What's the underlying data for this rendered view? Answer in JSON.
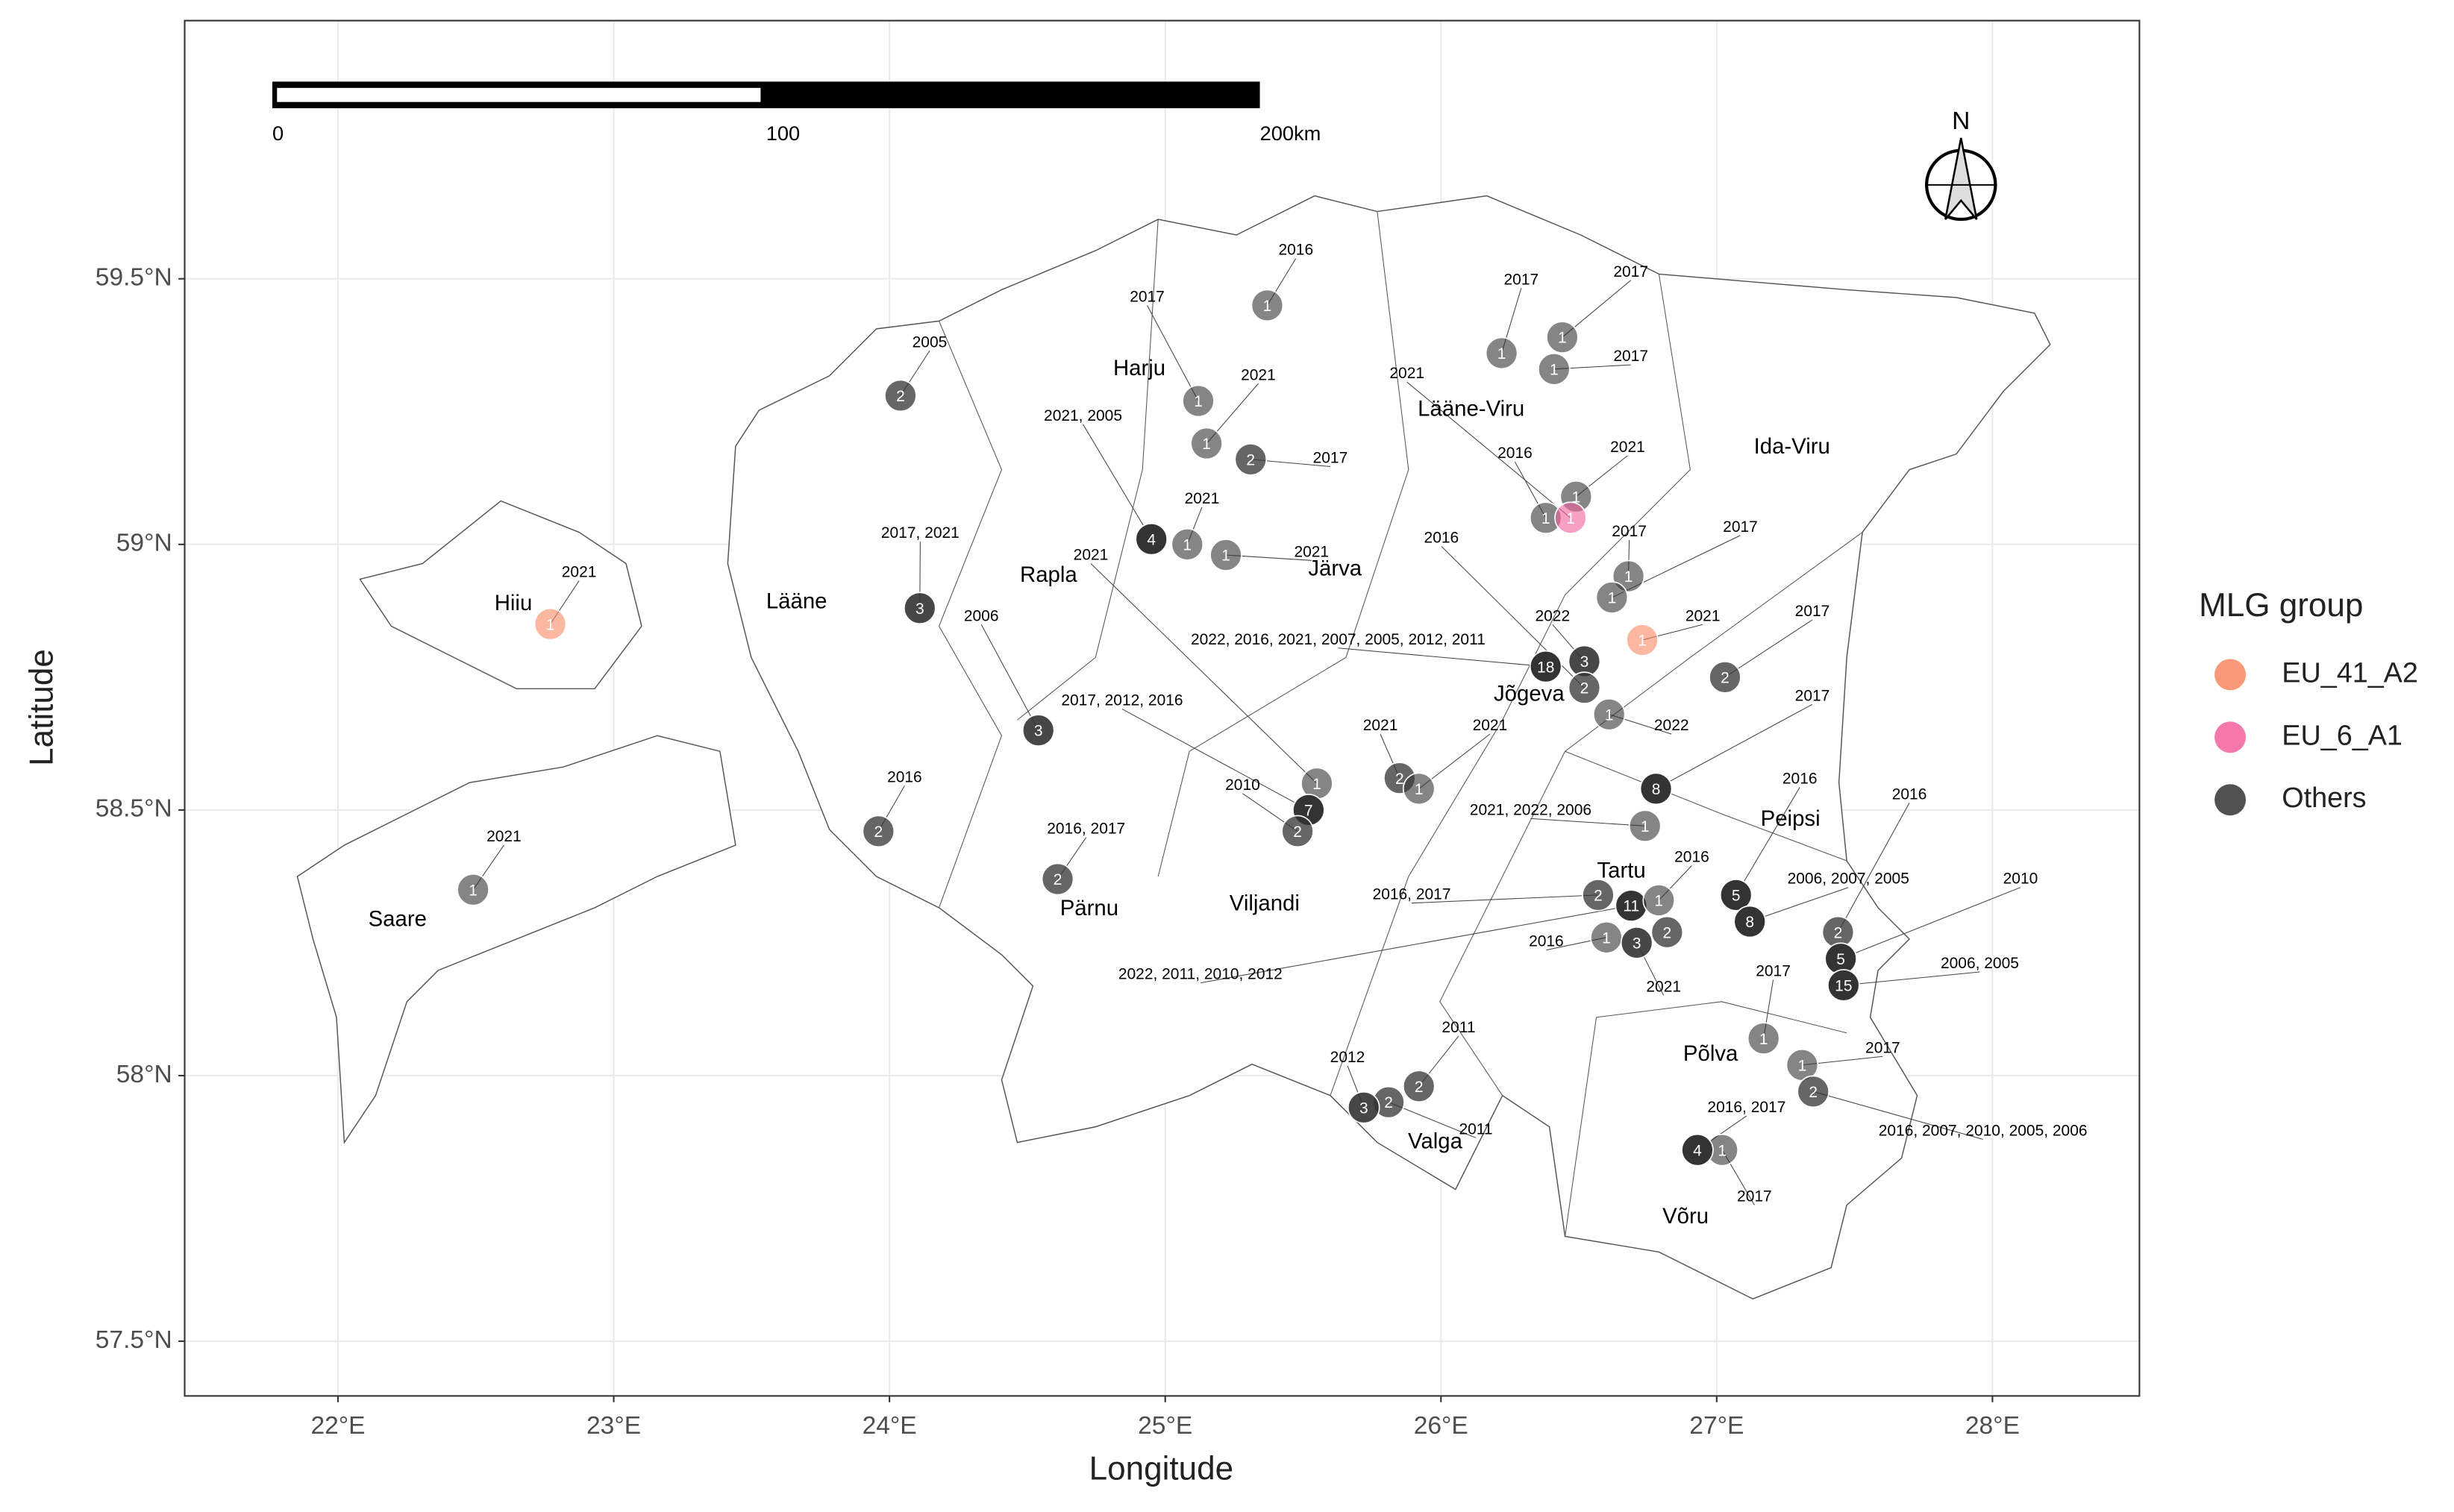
{
  "chart_data": {
    "type": "map",
    "xlabel": "Longitude",
    "ylabel": "Latitude",
    "xlim": [
      21.444,
      28.533
    ],
    "ylim": [
      57.397,
      59.986
    ],
    "xticks": [
      {
        "value": 22,
        "label": "22°E"
      },
      {
        "value": 23,
        "label": "23°E"
      },
      {
        "value": 24,
        "label": "24°E"
      },
      {
        "value": 25,
        "label": "25°E"
      },
      {
        "value": 26,
        "label": "26°E"
      },
      {
        "value": 27,
        "label": "27°E"
      },
      {
        "value": 28,
        "label": "28°E"
      }
    ],
    "yticks": [
      {
        "value": 57.5,
        "label": "57.5°N"
      },
      {
        "value": 58,
        "label": "58°N"
      },
      {
        "value": 58.5,
        "label": "58.5°N"
      },
      {
        "value": 59,
        "label": "59°N"
      },
      {
        "value": 59.5,
        "label": "59.5°N"
      }
    ],
    "grid": true,
    "legend_title": "MLG group",
    "groups": [
      {
        "name": "EU_41_A2",
        "color": "#f8875f"
      },
      {
        "name": "EU_6_A1",
        "color": "#f2609e"
      },
      {
        "name": "Others",
        "color": "#333333"
      }
    ],
    "scale_bar": {
      "ticks": [
        0,
        100,
        {
          "value": 200,
          "label": "200km"
        }
      ]
    },
    "compass": "N",
    "regions": [
      "Harju",
      "Lääne-Viru",
      "Ida-Viru",
      "Hiiu",
      "Lääne",
      "Rapla",
      "Järva",
      "Jõgeva",
      "Peipsi",
      "Tartu",
      "Saare",
      "Pärnu",
      "Viljandi",
      "Põlva",
      "Valga",
      "Võru"
    ],
    "points": [
      {
        "lon": 22.49,
        "lat": 58.35,
        "count": 1,
        "years": "2021",
        "group": "Others"
      },
      {
        "lon": 22.77,
        "lat": 58.85,
        "count": 1,
        "years": "2021",
        "group": "EU_41_A2"
      },
      {
        "lon": 24.04,
        "lat": 59.28,
        "count": 2,
        "years": "2005",
        "group": "Others"
      },
      {
        "lon": 24.11,
        "lat": 58.88,
        "count": 3,
        "years": "2017, 2021",
        "group": "Others"
      },
      {
        "lon": 23.96,
        "lat": 58.46,
        "count": 2,
        "years": "2016",
        "group": "Others"
      },
      {
        "lon": 24.54,
        "lat": 58.65,
        "count": 3,
        "years": "2006",
        "group": "Others"
      },
      {
        "lon": 24.61,
        "lat": 58.37,
        "count": 2,
        "years": "2016, 2017",
        "group": "Others"
      },
      {
        "lon": 25.37,
        "lat": 59.45,
        "count": 1,
        "years": "2016",
        "group": "Others"
      },
      {
        "lon": 25.12,
        "lat": 59.27,
        "count": 1,
        "years": "2017",
        "group": "Others"
      },
      {
        "lon": 25.15,
        "lat": 59.19,
        "count": 1,
        "years": "2021",
        "group": "Others"
      },
      {
        "lon": 25.31,
        "lat": 59.16,
        "count": 2,
        "years": "2017",
        "group": "Others"
      },
      {
        "lon": 24.95,
        "lat": 59.01,
        "count": 4,
        "years": "2021, 2005",
        "group": "Others"
      },
      {
        "lon": 25.08,
        "lat": 59.0,
        "count": 1,
        "years": "2021",
        "group": "Others"
      },
      {
        "lon": 25.22,
        "lat": 58.98,
        "count": 1,
        "years": "2021",
        "group": "Others"
      },
      {
        "lon": 25.55,
        "lat": 58.55,
        "count": 1,
        "years": "2021",
        "group": "Others"
      },
      {
        "lon": 25.52,
        "lat": 58.5,
        "count": 7,
        "years": "2017, 2012, 2016",
        "group": "Others"
      },
      {
        "lon": 25.48,
        "lat": 58.46,
        "count": 2,
        "years": "2010",
        "group": "Others"
      },
      {
        "lon": 25.85,
        "lat": 58.56,
        "count": 2,
        "years": "2021",
        "group": "Others"
      },
      {
        "lon": 25.92,
        "lat": 58.54,
        "count": 1,
        "years": "2021",
        "group": "Others"
      },
      {
        "lon": 26.38,
        "lat": 58.77,
        "count": 18,
        "years": "2022, 2016, 2021, 2007, 2005, 2012, 2011",
        "group": "Others"
      },
      {
        "lon": 26.52,
        "lat": 58.78,
        "count": 3,
        "years": "2022",
        "group": "Others"
      },
      {
        "lon": 26.52,
        "lat": 58.73,
        "count": 2,
        "years": "2016",
        "group": "Others"
      },
      {
        "lon": 26.61,
        "lat": 58.68,
        "count": 1,
        "years": "2022",
        "group": "Others"
      },
      {
        "lon": 26.22,
        "lat": 59.36,
        "count": 1,
        "years": "2017",
        "group": "Others"
      },
      {
        "lon": 26.44,
        "lat": 59.39,
        "count": 1,
        "years": "2017",
        "group": "Others"
      },
      {
        "lon": 26.41,
        "lat": 59.33,
        "count": 1,
        "years": "2017",
        "group": "Others"
      },
      {
        "lon": 26.49,
        "lat": 59.09,
        "count": 1,
        "years": "2021",
        "group": "Others"
      },
      {
        "lon": 26.38,
        "lat": 59.05,
        "count": 1,
        "years": "2016",
        "group": "Others"
      },
      {
        "lon": 26.47,
        "lat": 59.05,
        "count": 1,
        "years": "2021",
        "group": "EU_6_A1"
      },
      {
        "lon": 26.68,
        "lat": 58.94,
        "count": 1,
        "years": "2017",
        "group": "Others"
      },
      {
        "lon": 26.62,
        "lat": 58.9,
        "count": 1,
        "years": "2017",
        "group": "Others"
      },
      {
        "lon": 26.73,
        "lat": 58.82,
        "count": 1,
        "years": "2021",
        "group": "EU_41_A2"
      },
      {
        "lon": 27.03,
        "lat": 58.75,
        "count": 2,
        "years": "2017",
        "group": "Others"
      },
      {
        "lon": 26.78,
        "lat": 58.54,
        "count": 8,
        "years": "2017",
        "group": "Others"
      },
      {
        "lon": 26.74,
        "lat": 58.47,
        "count": 1,
        "years": "2021, 2022, 2006",
        "group": "Others"
      },
      {
        "lon": 26.57,
        "lat": 58.34,
        "count": 2,
        "years": "2016, 2017",
        "group": "Others"
      },
      {
        "lon": 26.69,
        "lat": 58.32,
        "count": 11,
        "years": "2022, 2011, 2010, 2012",
        "group": "Others"
      },
      {
        "lon": 26.79,
        "lat": 58.33,
        "count": 1,
        "years": "2016",
        "group": "Others"
      },
      {
        "lon": 26.6,
        "lat": 58.26,
        "count": 1,
        "years": "2016",
        "group": "Others"
      },
      {
        "lon": 26.71,
        "lat": 58.25,
        "count": 3,
        "years": "2021",
        "group": "Others"
      },
      {
        "lon": 26.82,
        "lat": 58.27,
        "count": 2,
        "years": null,
        "group": "Others"
      },
      {
        "lon": 27.07,
        "lat": 58.34,
        "count": 5,
        "years": "2016",
        "group": "Others"
      },
      {
        "lon": 27.12,
        "lat": 58.29,
        "count": 8,
        "years": "2006, 2007, 2005",
        "group": "Others"
      },
      {
        "lon": 27.44,
        "lat": 58.27,
        "count": 2,
        "years": "2016",
        "group": "Others"
      },
      {
        "lon": 27.45,
        "lat": 58.22,
        "count": 5,
        "years": "2010",
        "group": "Others"
      },
      {
        "lon": 27.46,
        "lat": 58.17,
        "count": 15,
        "years": "2006, 2005",
        "group": "Others"
      },
      {
        "lon": 27.17,
        "lat": 58.07,
        "count": 1,
        "years": "2017",
        "group": "Others"
      },
      {
        "lon": 27.31,
        "lat": 58.02,
        "count": 1,
        "years": "2017",
        "group": "Others"
      },
      {
        "lon": 27.35,
        "lat": 57.97,
        "count": 2,
        "years": "2016, 2007, 2010, 2005, 2006",
        "group": "Others"
      },
      {
        "lon": 27.02,
        "lat": 57.86,
        "count": 1,
        "years": "2017",
        "group": "Others"
      },
      {
        "lon": 26.93,
        "lat": 57.86,
        "count": 4,
        "years": "2016, 2017",
        "group": "Others"
      },
      {
        "lon": 25.92,
        "lat": 57.98,
        "count": 2,
        "years": "2011",
        "group": "Others"
      },
      {
        "lon": 25.81,
        "lat": 57.95,
        "count": 2,
        "years": "2011",
        "group": "Others"
      },
      {
        "lon": 25.72,
        "lat": 57.94,
        "count": 3,
        "years": "2012",
        "group": "Others"
      }
    ]
  }
}
